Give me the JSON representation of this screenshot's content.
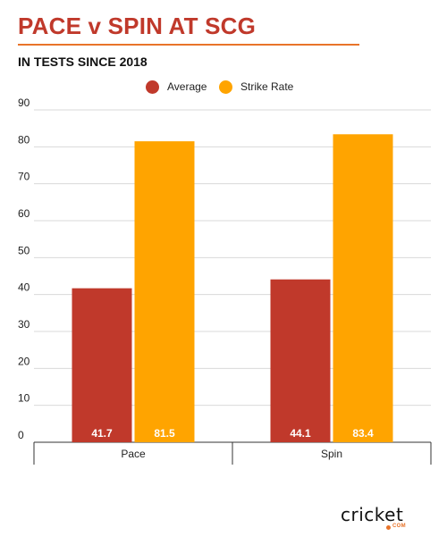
{
  "title": "PACE v SPIN AT SCG",
  "subtitle": "IN TESTS SINCE 2018",
  "brand": {
    "name": "cricket",
    "sub": "COM"
  },
  "colors": {
    "title": "#c0392b",
    "rule": "#e8742a",
    "average": "#c0392b",
    "strike_rate": "#ffa400",
    "grid": "#d9d9d9"
  },
  "chart_data": {
    "type": "bar",
    "categories": [
      "Pace",
      "Spin"
    ],
    "series": [
      {
        "name": "Average",
        "values": [
          41.7,
          44.1
        ],
        "color": "#c0392b"
      },
      {
        "name": "Strike Rate",
        "values": [
          81.5,
          83.4
        ],
        "color": "#ffa400"
      }
    ],
    "ylim": [
      0,
      90
    ],
    "yticks": [
      "0",
      "10",
      "20",
      "30",
      "40",
      "50",
      "60",
      "70",
      "80",
      "90"
    ],
    "data_labels": [
      [
        "41.7",
        "44.1"
      ],
      [
        "81.5",
        "83.4"
      ]
    ],
    "legend": "top-center",
    "grid": true
  }
}
